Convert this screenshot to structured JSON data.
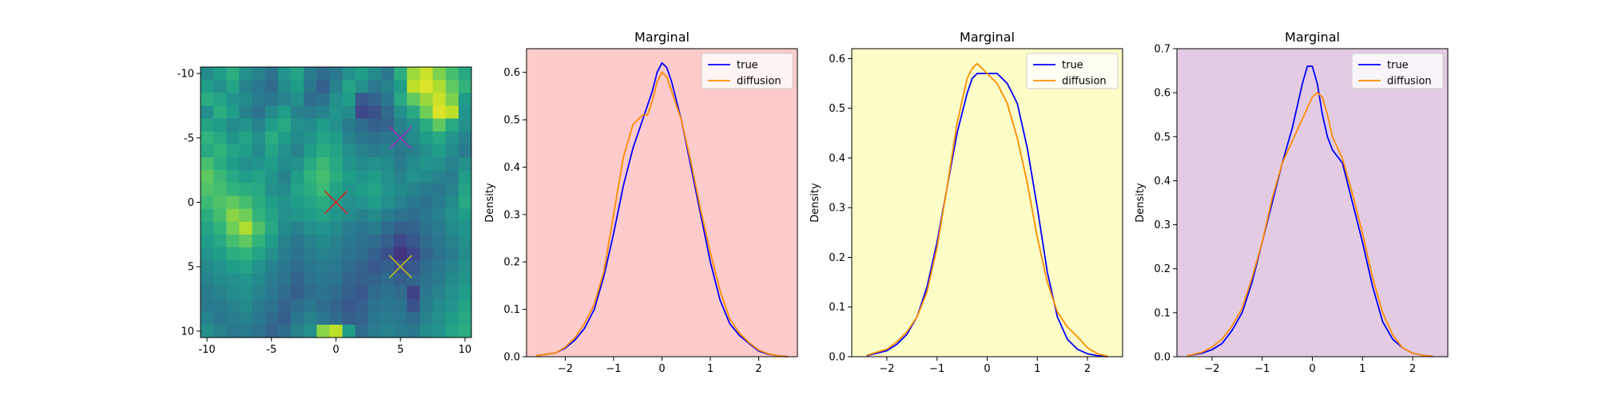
{
  "chart_data": [
    {
      "type": "heatmap",
      "title": "",
      "xlim": [
        -10.5,
        10.5
      ],
      "ylim": [
        -10.5,
        10.5
      ],
      "y_inverted": true,
      "xticks": [
        -10,
        -5,
        0,
        5,
        10
      ],
      "yticks": [
        -10,
        -5,
        0,
        5,
        10
      ],
      "xtick_labels": [
        "-10",
        "-5",
        "0",
        "5",
        "10"
      ],
      "ytick_labels": [
        "-10",
        "-5",
        "0",
        "5",
        "10"
      ],
      "grid_size": 21,
      "colormap": "viridis",
      "markers": [
        {
          "x": 5,
          "y": -5,
          "color": "#9b30b8",
          "shape": "x"
        },
        {
          "x": 0,
          "y": 0,
          "color": "#d62728",
          "shape": "x"
        },
        {
          "x": 5,
          "y": 5,
          "color": "#bcbd22",
          "shape": "x"
        }
      ],
      "cells": [
        [
          0.48,
          0.55,
          0.62,
          0.5,
          0.45,
          0.38,
          0.52,
          0.58,
          0.42,
          0.35,
          0.4,
          0.5,
          0.55,
          0.48,
          0.4,
          0.62,
          0.85,
          0.92,
          0.8,
          0.7,
          0.6
        ],
        [
          0.55,
          0.5,
          0.58,
          0.45,
          0.4,
          0.35,
          0.48,
          0.55,
          0.4,
          0.3,
          0.45,
          0.58,
          0.5,
          0.4,
          0.45,
          0.55,
          0.9,
          0.95,
          0.88,
          0.75,
          0.65
        ],
        [
          0.62,
          0.58,
          0.52,
          0.48,
          0.42,
          0.4,
          0.45,
          0.5,
          0.35,
          0.38,
          0.5,
          0.55,
          0.28,
          0.32,
          0.4,
          0.6,
          0.75,
          0.85,
          0.92,
          0.8,
          0.55
        ],
        [
          0.5,
          0.62,
          0.55,
          0.45,
          0.38,
          0.48,
          0.55,
          0.45,
          0.42,
          0.45,
          0.52,
          0.48,
          0.22,
          0.25,
          0.35,
          0.5,
          0.6,
          0.78,
          0.95,
          0.9,
          0.52
        ],
        [
          0.58,
          0.55,
          0.48,
          0.52,
          0.45,
          0.55,
          0.6,
          0.5,
          0.48,
          0.55,
          0.5,
          0.42,
          0.35,
          0.3,
          0.32,
          0.45,
          0.5,
          0.62,
          0.75,
          0.6,
          0.5
        ],
        [
          0.65,
          0.6,
          0.52,
          0.58,
          0.5,
          0.62,
          0.55,
          0.48,
          0.52,
          0.58,
          0.55,
          0.45,
          0.4,
          0.38,
          0.4,
          0.42,
          0.48,
          0.55,
          0.6,
          0.52,
          0.45
        ],
        [
          0.6,
          0.65,
          0.58,
          0.55,
          0.48,
          0.58,
          0.5,
          0.45,
          0.55,
          0.62,
          0.58,
          0.5,
          0.45,
          0.42,
          0.45,
          0.4,
          0.45,
          0.5,
          0.55,
          0.48,
          0.42
        ],
        [
          0.7,
          0.62,
          0.55,
          0.5,
          0.52,
          0.55,
          0.48,
          0.5,
          0.6,
          0.68,
          0.6,
          0.52,
          0.48,
          0.5,
          0.48,
          0.42,
          0.48,
          0.52,
          0.5,
          0.45,
          0.5
        ],
        [
          0.75,
          0.68,
          0.6,
          0.55,
          0.58,
          0.52,
          0.45,
          0.55,
          0.65,
          0.7,
          0.62,
          0.55,
          0.52,
          0.55,
          0.5,
          0.45,
          0.5,
          0.48,
          0.45,
          0.42,
          0.55
        ],
        [
          0.72,
          0.7,
          0.65,
          0.62,
          0.6,
          0.5,
          0.48,
          0.58,
          0.62,
          0.68,
          0.58,
          0.52,
          0.55,
          0.58,
          0.52,
          0.48,
          0.45,
          0.42,
          0.4,
          0.45,
          0.58
        ],
        [
          0.68,
          0.72,
          0.75,
          0.7,
          0.62,
          0.55,
          0.52,
          0.55,
          0.58,
          0.62,
          0.55,
          0.5,
          0.52,
          0.55,
          0.5,
          0.45,
          0.4,
          0.38,
          0.42,
          0.48,
          0.6
        ],
        [
          0.62,
          0.7,
          0.82,
          0.78,
          0.65,
          0.58,
          0.5,
          0.52,
          0.55,
          0.58,
          0.52,
          0.48,
          0.45,
          0.48,
          0.42,
          0.38,
          0.35,
          0.4,
          0.45,
          0.5,
          0.55
        ],
        [
          0.58,
          0.65,
          0.78,
          0.88,
          0.72,
          0.6,
          0.48,
          0.45,
          0.5,
          0.52,
          0.48,
          0.42,
          0.4,
          0.42,
          0.35,
          0.3,
          0.32,
          0.38,
          0.42,
          0.48,
          0.52
        ],
        [
          0.55,
          0.6,
          0.7,
          0.75,
          0.65,
          0.55,
          0.45,
          0.4,
          0.45,
          0.48,
          0.45,
          0.4,
          0.38,
          0.35,
          0.3,
          0.22,
          0.28,
          0.35,
          0.4,
          0.45,
          0.5
        ],
        [
          0.52,
          0.55,
          0.62,
          0.65,
          0.58,
          0.5,
          0.42,
          0.38,
          0.42,
          0.45,
          0.42,
          0.38,
          0.35,
          0.3,
          0.25,
          0.15,
          0.22,
          0.32,
          0.38,
          0.42,
          0.48
        ],
        [
          0.48,
          0.52,
          0.55,
          0.58,
          0.52,
          0.45,
          0.4,
          0.35,
          0.4,
          0.42,
          0.4,
          0.35,
          0.32,
          0.28,
          0.3,
          0.25,
          0.28,
          0.35,
          0.4,
          0.45,
          0.5
        ],
        [
          0.45,
          0.48,
          0.5,
          0.52,
          0.48,
          0.42,
          0.38,
          0.32,
          0.38,
          0.4,
          0.38,
          0.32,
          0.3,
          0.32,
          0.35,
          0.3,
          0.32,
          0.38,
          0.42,
          0.48,
          0.52
        ],
        [
          0.42,
          0.45,
          0.48,
          0.5,
          0.45,
          0.4,
          0.35,
          0.3,
          0.35,
          0.38,
          0.35,
          0.3,
          0.28,
          0.35,
          0.38,
          0.35,
          0.2,
          0.4,
          0.45,
          0.5,
          0.55
        ],
        [
          0.4,
          0.42,
          0.45,
          0.48,
          0.42,
          0.38,
          0.32,
          0.35,
          0.4,
          0.35,
          0.32,
          0.28,
          0.3,
          0.38,
          0.4,
          0.38,
          0.25,
          0.42,
          0.48,
          0.52,
          0.58
        ],
        [
          0.45,
          0.4,
          0.42,
          0.45,
          0.4,
          0.35,
          0.3,
          0.4,
          0.45,
          0.4,
          0.35,
          0.3,
          0.32,
          0.4,
          0.42,
          0.4,
          0.35,
          0.45,
          0.5,
          0.55,
          0.6
        ],
        [
          0.5,
          0.45,
          0.4,
          0.42,
          0.38,
          0.32,
          0.35,
          0.45,
          0.5,
          0.82,
          0.9,
          0.55,
          0.35,
          0.42,
          0.45,
          0.42,
          0.4,
          0.48,
          0.52,
          0.58,
          0.62
        ]
      ]
    },
    {
      "type": "line",
      "title": "Marginal",
      "xlabel": "",
      "ylabel": "Density",
      "xlim": [
        -2.8,
        2.8
      ],
      "ylim": [
        0,
        0.65
      ],
      "xticks": [
        -2,
        -1,
        0,
        1,
        2
      ],
      "xtick_labels": [
        "−2",
        "−1",
        "0",
        "1",
        "2"
      ],
      "yticks": [
        0,
        0.1,
        0.2,
        0.3,
        0.4,
        0.5,
        0.6
      ],
      "ytick_labels": [
        "0.0",
        "0.1",
        "0.2",
        "0.3",
        "0.4",
        "0.5",
        "0.6"
      ],
      "background": "#fdcbcb",
      "legend_position": "top-right",
      "series": [
        {
          "name": "true",
          "color": "#0000ff",
          "x": [
            -2.6,
            -2.2,
            -2.0,
            -1.8,
            -1.6,
            -1.4,
            -1.2,
            -1.0,
            -0.8,
            -0.6,
            -0.4,
            -0.2,
            -0.1,
            0.0,
            0.1,
            0.2,
            0.4,
            0.6,
            0.8,
            1.0,
            1.2,
            1.4,
            1.6,
            1.8,
            2.0,
            2.2,
            2.4,
            2.6
          ],
          "y": [
            0.002,
            0.008,
            0.018,
            0.035,
            0.06,
            0.1,
            0.17,
            0.26,
            0.36,
            0.44,
            0.5,
            0.56,
            0.6,
            0.62,
            0.61,
            0.58,
            0.5,
            0.4,
            0.3,
            0.2,
            0.12,
            0.07,
            0.045,
            0.028,
            0.012,
            0.005,
            0.002,
            0.0
          ]
        },
        {
          "name": "diffusion",
          "color": "#ff8c00",
          "x": [
            -2.6,
            -2.2,
            -2.0,
            -1.8,
            -1.6,
            -1.4,
            -1.2,
            -1.0,
            -0.8,
            -0.6,
            -0.5,
            -0.4,
            -0.3,
            -0.2,
            -0.1,
            0.0,
            0.1,
            0.2,
            0.4,
            0.6,
            0.8,
            1.0,
            1.2,
            1.4,
            1.6,
            1.8,
            2.0,
            2.2,
            2.4,
            2.6
          ],
          "y": [
            0.002,
            0.008,
            0.02,
            0.04,
            0.07,
            0.11,
            0.18,
            0.3,
            0.42,
            0.49,
            0.5,
            0.51,
            0.51,
            0.54,
            0.58,
            0.6,
            0.59,
            0.56,
            0.5,
            0.41,
            0.31,
            0.22,
            0.14,
            0.08,
            0.05,
            0.03,
            0.014,
            0.006,
            0.002,
            0.0
          ]
        }
      ]
    },
    {
      "type": "line",
      "title": "Marginal",
      "xlabel": "",
      "ylabel": "Density",
      "xlim": [
        -2.7,
        2.7
      ],
      "ylim": [
        0,
        0.62
      ],
      "xticks": [
        -2,
        -1,
        0,
        1,
        2
      ],
      "xtick_labels": [
        "−2",
        "−1",
        "0",
        "1",
        "2"
      ],
      "yticks": [
        0,
        0.1,
        0.2,
        0.3,
        0.4,
        0.5,
        0.6
      ],
      "ytick_labels": [
        "0.0",
        "0.1",
        "0.2",
        "0.3",
        "0.4",
        "0.5",
        "0.6"
      ],
      "background": "#fdfdc8",
      "legend_position": "top-right",
      "series": [
        {
          "name": "true",
          "color": "#0000ff",
          "x": [
            -2.4,
            -2.0,
            -1.8,
            -1.6,
            -1.4,
            -1.2,
            -1.0,
            -0.8,
            -0.6,
            -0.4,
            -0.3,
            -0.2,
            -0.1,
            0.0,
            0.1,
            0.2,
            0.3,
            0.4,
            0.6,
            0.8,
            1.0,
            1.2,
            1.4,
            1.6,
            1.8,
            2.0,
            2.2,
            2.4
          ],
          "y": [
            0.002,
            0.012,
            0.025,
            0.045,
            0.08,
            0.14,
            0.23,
            0.34,
            0.45,
            0.53,
            0.56,
            0.57,
            0.57,
            0.57,
            0.57,
            0.57,
            0.56,
            0.55,
            0.51,
            0.42,
            0.3,
            0.17,
            0.08,
            0.035,
            0.015,
            0.006,
            0.002,
            0.0
          ]
        },
        {
          "name": "diffusion",
          "color": "#ff8c00",
          "x": [
            -2.4,
            -2.0,
            -1.8,
            -1.6,
            -1.4,
            -1.2,
            -1.0,
            -0.8,
            -0.6,
            -0.4,
            -0.3,
            -0.2,
            -0.1,
            0.0,
            0.1,
            0.2,
            0.4,
            0.6,
            0.8,
            1.0,
            1.2,
            1.4,
            1.6,
            1.8,
            2.0,
            2.2,
            2.4
          ],
          "y": [
            0.003,
            0.015,
            0.03,
            0.05,
            0.08,
            0.13,
            0.22,
            0.34,
            0.47,
            0.56,
            0.58,
            0.59,
            0.58,
            0.57,
            0.56,
            0.55,
            0.51,
            0.44,
            0.35,
            0.24,
            0.15,
            0.09,
            0.06,
            0.04,
            0.018,
            0.006,
            0.001
          ]
        }
      ]
    },
    {
      "type": "line",
      "title": "Marginal",
      "xlabel": "",
      "ylabel": "Density",
      "xlim": [
        -2.7,
        2.7
      ],
      "ylim": [
        0,
        0.7
      ],
      "xticks": [
        -2,
        -1,
        0,
        1,
        2
      ],
      "xtick_labels": [
        "−2",
        "−1",
        "0",
        "1",
        "2"
      ],
      "yticks": [
        0,
        0.1,
        0.2,
        0.3,
        0.4,
        0.5,
        0.6,
        0.7
      ],
      "ytick_labels": [
        "0.0",
        "0.1",
        "0.2",
        "0.3",
        "0.4",
        "0.5",
        "0.6",
        "0.7"
      ],
      "background": "#e3cce3",
      "legend_position": "top-right",
      "series": [
        {
          "name": "true",
          "color": "#0000ff",
          "x": [
            -2.5,
            -2.2,
            -2.0,
            -1.8,
            -1.6,
            -1.4,
            -1.2,
            -1.0,
            -0.8,
            -0.6,
            -0.4,
            -0.3,
            -0.2,
            -0.1,
            0.0,
            0.1,
            0.2,
            0.3,
            0.4,
            0.6,
            0.8,
            1.0,
            1.2,
            1.4,
            1.6,
            1.8,
            2.0,
            2.2,
            2.4
          ],
          "y": [
            0.002,
            0.008,
            0.016,
            0.03,
            0.06,
            0.1,
            0.17,
            0.26,
            0.35,
            0.44,
            0.52,
            0.57,
            0.62,
            0.66,
            0.66,
            0.62,
            0.55,
            0.5,
            0.47,
            0.44,
            0.35,
            0.26,
            0.16,
            0.08,
            0.04,
            0.02,
            0.008,
            0.003,
            0.001
          ]
        },
        {
          "name": "diffusion",
          "color": "#ff8c00",
          "x": [
            -2.5,
            -2.2,
            -2.0,
            -1.8,
            -1.6,
            -1.4,
            -1.2,
            -1.0,
            -0.8,
            -0.6,
            -0.4,
            -0.2,
            0.0,
            0.1,
            0.2,
            0.3,
            0.4,
            0.6,
            0.8,
            1.0,
            1.2,
            1.4,
            1.6,
            1.8,
            2.0,
            2.2,
            2.4
          ],
          "y": [
            0.002,
            0.01,
            0.022,
            0.04,
            0.07,
            0.11,
            0.18,
            0.26,
            0.36,
            0.44,
            0.49,
            0.54,
            0.59,
            0.6,
            0.59,
            0.55,
            0.5,
            0.45,
            0.37,
            0.28,
            0.18,
            0.1,
            0.05,
            0.02,
            0.008,
            0.003,
            0.001
          ]
        }
      ]
    }
  ]
}
